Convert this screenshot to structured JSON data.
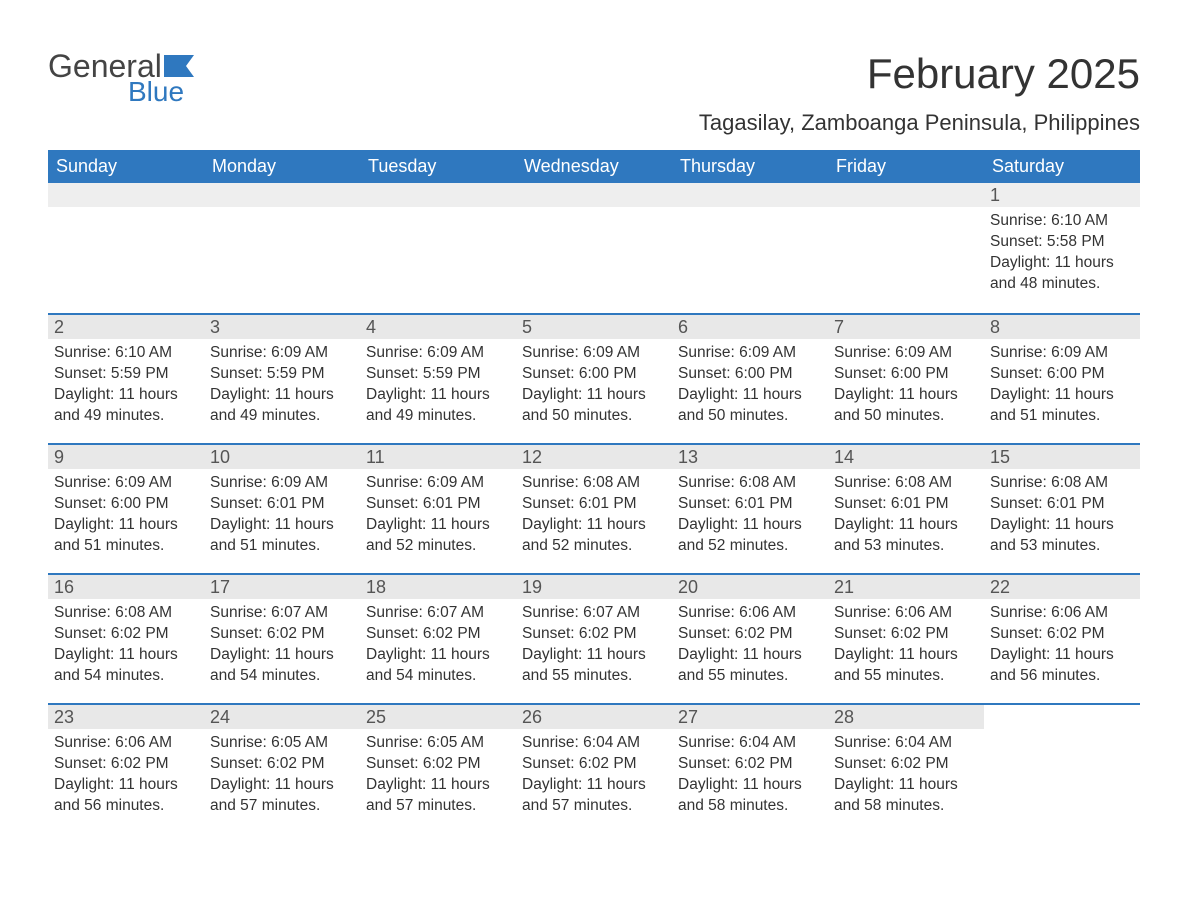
{
  "colors": {
    "header_bg": "#2f78bf",
    "header_text": "#ffffff",
    "daynum_bg": "#e8e8e8",
    "week_border": "#2f78bf",
    "body_text": "#333333",
    "logo_gray": "#444444",
    "logo_blue": "#2f78bf",
    "page_bg": "#ffffff"
  },
  "logo": {
    "text_general": "General",
    "text_blue": "Blue"
  },
  "title": "February 2025",
  "location": "Tagasilay, Zamboanga Peninsula, Philippines",
  "days_of_week": [
    "Sunday",
    "Monday",
    "Tuesday",
    "Wednesday",
    "Thursday",
    "Friday",
    "Saturday"
  ],
  "weeks": [
    [
      {
        "n": null
      },
      {
        "n": null
      },
      {
        "n": null
      },
      {
        "n": null
      },
      {
        "n": null
      },
      {
        "n": null
      },
      {
        "n": "1",
        "sunrise": "Sunrise: 6:10 AM",
        "sunset": "Sunset: 5:58 PM",
        "daylight1": "Daylight: 11 hours",
        "daylight2": "and 48 minutes."
      }
    ],
    [
      {
        "n": "2",
        "sunrise": "Sunrise: 6:10 AM",
        "sunset": "Sunset: 5:59 PM",
        "daylight1": "Daylight: 11 hours",
        "daylight2": "and 49 minutes."
      },
      {
        "n": "3",
        "sunrise": "Sunrise: 6:09 AM",
        "sunset": "Sunset: 5:59 PM",
        "daylight1": "Daylight: 11 hours",
        "daylight2": "and 49 minutes."
      },
      {
        "n": "4",
        "sunrise": "Sunrise: 6:09 AM",
        "sunset": "Sunset: 5:59 PM",
        "daylight1": "Daylight: 11 hours",
        "daylight2": "and 49 minutes."
      },
      {
        "n": "5",
        "sunrise": "Sunrise: 6:09 AM",
        "sunset": "Sunset: 6:00 PM",
        "daylight1": "Daylight: 11 hours",
        "daylight2": "and 50 minutes."
      },
      {
        "n": "6",
        "sunrise": "Sunrise: 6:09 AM",
        "sunset": "Sunset: 6:00 PM",
        "daylight1": "Daylight: 11 hours",
        "daylight2": "and 50 minutes."
      },
      {
        "n": "7",
        "sunrise": "Sunrise: 6:09 AM",
        "sunset": "Sunset: 6:00 PM",
        "daylight1": "Daylight: 11 hours",
        "daylight2": "and 50 minutes."
      },
      {
        "n": "8",
        "sunrise": "Sunrise: 6:09 AM",
        "sunset": "Sunset: 6:00 PM",
        "daylight1": "Daylight: 11 hours",
        "daylight2": "and 51 minutes."
      }
    ],
    [
      {
        "n": "9",
        "sunrise": "Sunrise: 6:09 AM",
        "sunset": "Sunset: 6:00 PM",
        "daylight1": "Daylight: 11 hours",
        "daylight2": "and 51 minutes."
      },
      {
        "n": "10",
        "sunrise": "Sunrise: 6:09 AM",
        "sunset": "Sunset: 6:01 PM",
        "daylight1": "Daylight: 11 hours",
        "daylight2": "and 51 minutes."
      },
      {
        "n": "11",
        "sunrise": "Sunrise: 6:09 AM",
        "sunset": "Sunset: 6:01 PM",
        "daylight1": "Daylight: 11 hours",
        "daylight2": "and 52 minutes."
      },
      {
        "n": "12",
        "sunrise": "Sunrise: 6:08 AM",
        "sunset": "Sunset: 6:01 PM",
        "daylight1": "Daylight: 11 hours",
        "daylight2": "and 52 minutes."
      },
      {
        "n": "13",
        "sunrise": "Sunrise: 6:08 AM",
        "sunset": "Sunset: 6:01 PM",
        "daylight1": "Daylight: 11 hours",
        "daylight2": "and 52 minutes."
      },
      {
        "n": "14",
        "sunrise": "Sunrise: 6:08 AM",
        "sunset": "Sunset: 6:01 PM",
        "daylight1": "Daylight: 11 hours",
        "daylight2": "and 53 minutes."
      },
      {
        "n": "15",
        "sunrise": "Sunrise: 6:08 AM",
        "sunset": "Sunset: 6:01 PM",
        "daylight1": "Daylight: 11 hours",
        "daylight2": "and 53 minutes."
      }
    ],
    [
      {
        "n": "16",
        "sunrise": "Sunrise: 6:08 AM",
        "sunset": "Sunset: 6:02 PM",
        "daylight1": "Daylight: 11 hours",
        "daylight2": "and 54 minutes."
      },
      {
        "n": "17",
        "sunrise": "Sunrise: 6:07 AM",
        "sunset": "Sunset: 6:02 PM",
        "daylight1": "Daylight: 11 hours",
        "daylight2": "and 54 minutes."
      },
      {
        "n": "18",
        "sunrise": "Sunrise: 6:07 AM",
        "sunset": "Sunset: 6:02 PM",
        "daylight1": "Daylight: 11 hours",
        "daylight2": "and 54 minutes."
      },
      {
        "n": "19",
        "sunrise": "Sunrise: 6:07 AM",
        "sunset": "Sunset: 6:02 PM",
        "daylight1": "Daylight: 11 hours",
        "daylight2": "and 55 minutes."
      },
      {
        "n": "20",
        "sunrise": "Sunrise: 6:06 AM",
        "sunset": "Sunset: 6:02 PM",
        "daylight1": "Daylight: 11 hours",
        "daylight2": "and 55 minutes."
      },
      {
        "n": "21",
        "sunrise": "Sunrise: 6:06 AM",
        "sunset": "Sunset: 6:02 PM",
        "daylight1": "Daylight: 11 hours",
        "daylight2": "and 55 minutes."
      },
      {
        "n": "22",
        "sunrise": "Sunrise: 6:06 AM",
        "sunset": "Sunset: 6:02 PM",
        "daylight1": "Daylight: 11 hours",
        "daylight2": "and 56 minutes."
      }
    ],
    [
      {
        "n": "23",
        "sunrise": "Sunrise: 6:06 AM",
        "sunset": "Sunset: 6:02 PM",
        "daylight1": "Daylight: 11 hours",
        "daylight2": "and 56 minutes."
      },
      {
        "n": "24",
        "sunrise": "Sunrise: 6:05 AM",
        "sunset": "Sunset: 6:02 PM",
        "daylight1": "Daylight: 11 hours",
        "daylight2": "and 57 minutes."
      },
      {
        "n": "25",
        "sunrise": "Sunrise: 6:05 AM",
        "sunset": "Sunset: 6:02 PM",
        "daylight1": "Daylight: 11 hours",
        "daylight2": "and 57 minutes."
      },
      {
        "n": "26",
        "sunrise": "Sunrise: 6:04 AM",
        "sunset": "Sunset: 6:02 PM",
        "daylight1": "Daylight: 11 hours",
        "daylight2": "and 57 minutes."
      },
      {
        "n": "27",
        "sunrise": "Sunrise: 6:04 AM",
        "sunset": "Sunset: 6:02 PM",
        "daylight1": "Daylight: 11 hours",
        "daylight2": "and 58 minutes."
      },
      {
        "n": "28",
        "sunrise": "Sunrise: 6:04 AM",
        "sunset": "Sunset: 6:02 PM",
        "daylight1": "Daylight: 11 hours",
        "daylight2": "and 58 minutes."
      },
      {
        "n": null
      }
    ]
  ]
}
